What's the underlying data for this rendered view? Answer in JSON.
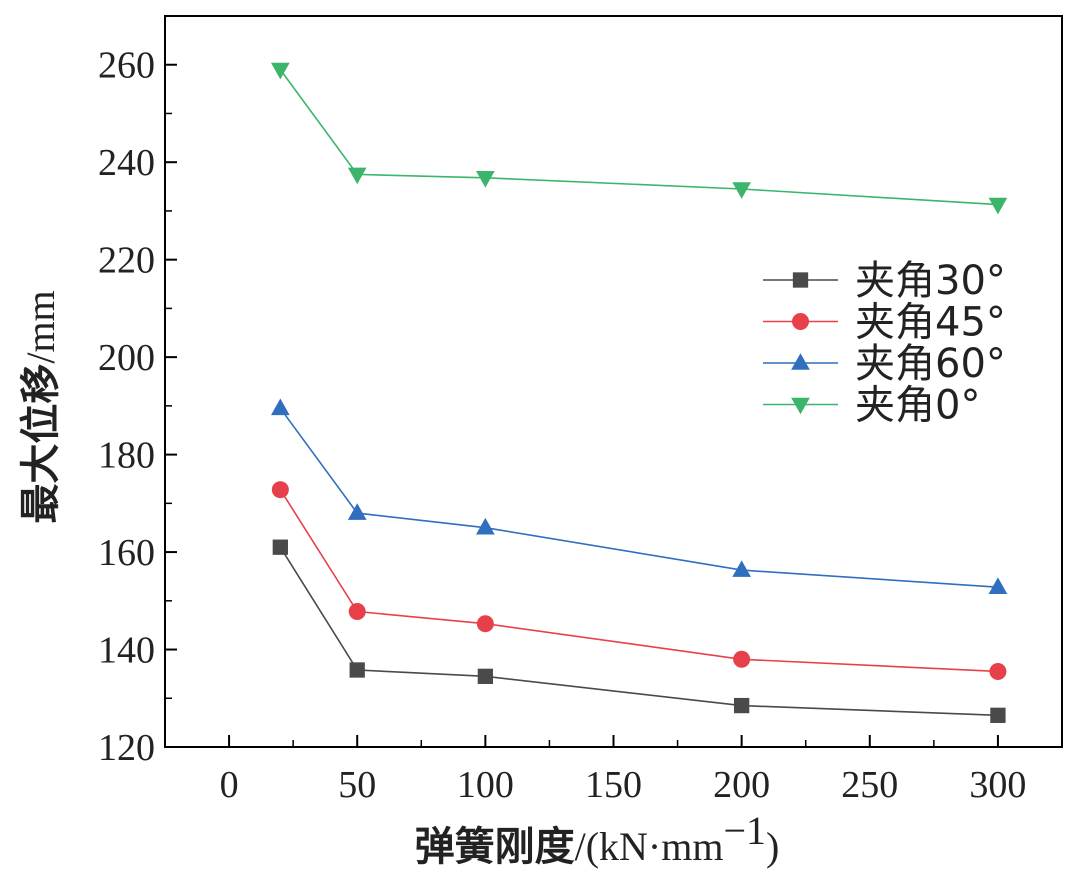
{
  "chart_data": {
    "type": "line",
    "x": [
      20,
      50,
      100,
      200,
      300
    ],
    "xlim": [
      -25,
      325
    ],
    "ylim": [
      120,
      270
    ],
    "xticks": [
      0,
      50,
      100,
      150,
      200,
      250,
      300
    ],
    "yticks": [
      120,
      140,
      160,
      180,
      200,
      220,
      240,
      260
    ],
    "xlabel_main": "弹簧刚度",
    "xlabel_unit": "/(kN·mm",
    "xlabel_sup": "−1",
    "xlabel_close": ")",
    "ylabel_main": "最大位移",
    "ylabel_unit": "/mm",
    "legend_position": "center-right",
    "series": [
      {
        "name": "夹角30°",
        "marker": "square",
        "color": "#4a4a4a",
        "values": [
          161,
          135.8,
          134.5,
          128.5,
          126.5
        ]
      },
      {
        "name": "夹角45°",
        "marker": "circle",
        "color": "#e8404a",
        "values": [
          172.8,
          147.8,
          145.3,
          138,
          135.5
        ]
      },
      {
        "name": "夹角60°",
        "marker": "triangle-up",
        "color": "#2f6fbe",
        "values": [
          189.5,
          168,
          165,
          156.3,
          152.8
        ]
      },
      {
        "name": "夹角0°",
        "marker": "triangle-down",
        "color": "#3cb56c",
        "values": [
          259,
          237.5,
          236.8,
          234.5,
          231.3
        ]
      }
    ]
  }
}
